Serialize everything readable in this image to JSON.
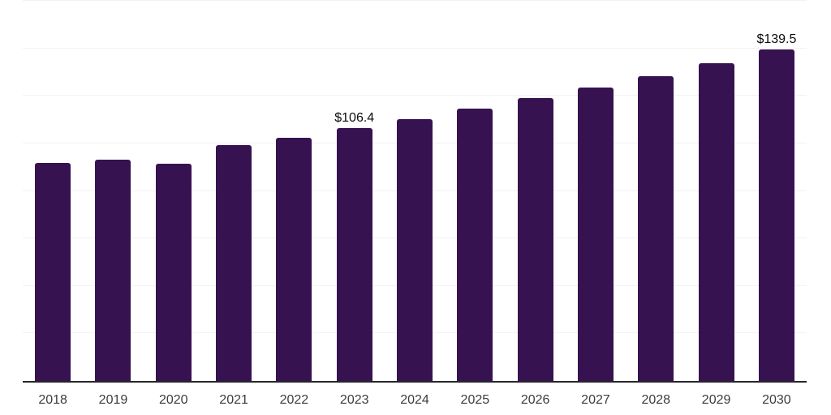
{
  "chart_data": {
    "type": "bar",
    "title": "",
    "xlabel": "",
    "ylabel": "",
    "categories": [
      "2018",
      "2019",
      "2020",
      "2021",
      "2022",
      "2023",
      "2024",
      "2025",
      "2026",
      "2027",
      "2028",
      "2029",
      "2030"
    ],
    "values": [
      91.8,
      93.3,
      91.6,
      99.4,
      102.3,
      106.4,
      110.3,
      114.5,
      118.9,
      123.4,
      128.2,
      133.9,
      139.5
    ],
    "data_labels": [
      {
        "category": "2023",
        "text": "$106.4"
      },
      {
        "category": "2030",
        "text": "$139.5"
      }
    ],
    "value_prefix": "$",
    "ylim": [
      0,
      160
    ],
    "gridline_values": [
      20,
      40,
      60,
      80,
      100,
      120,
      140,
      160
    ],
    "grid": "horizontal-only",
    "legend": "none",
    "colors": {
      "bar": "#371250",
      "gridline": "#f2f2f2",
      "axis_line": "#26262b",
      "data_label": "#0b0b0d",
      "tick_label": "#3c3c41",
      "background": "#ffffff"
    }
  }
}
